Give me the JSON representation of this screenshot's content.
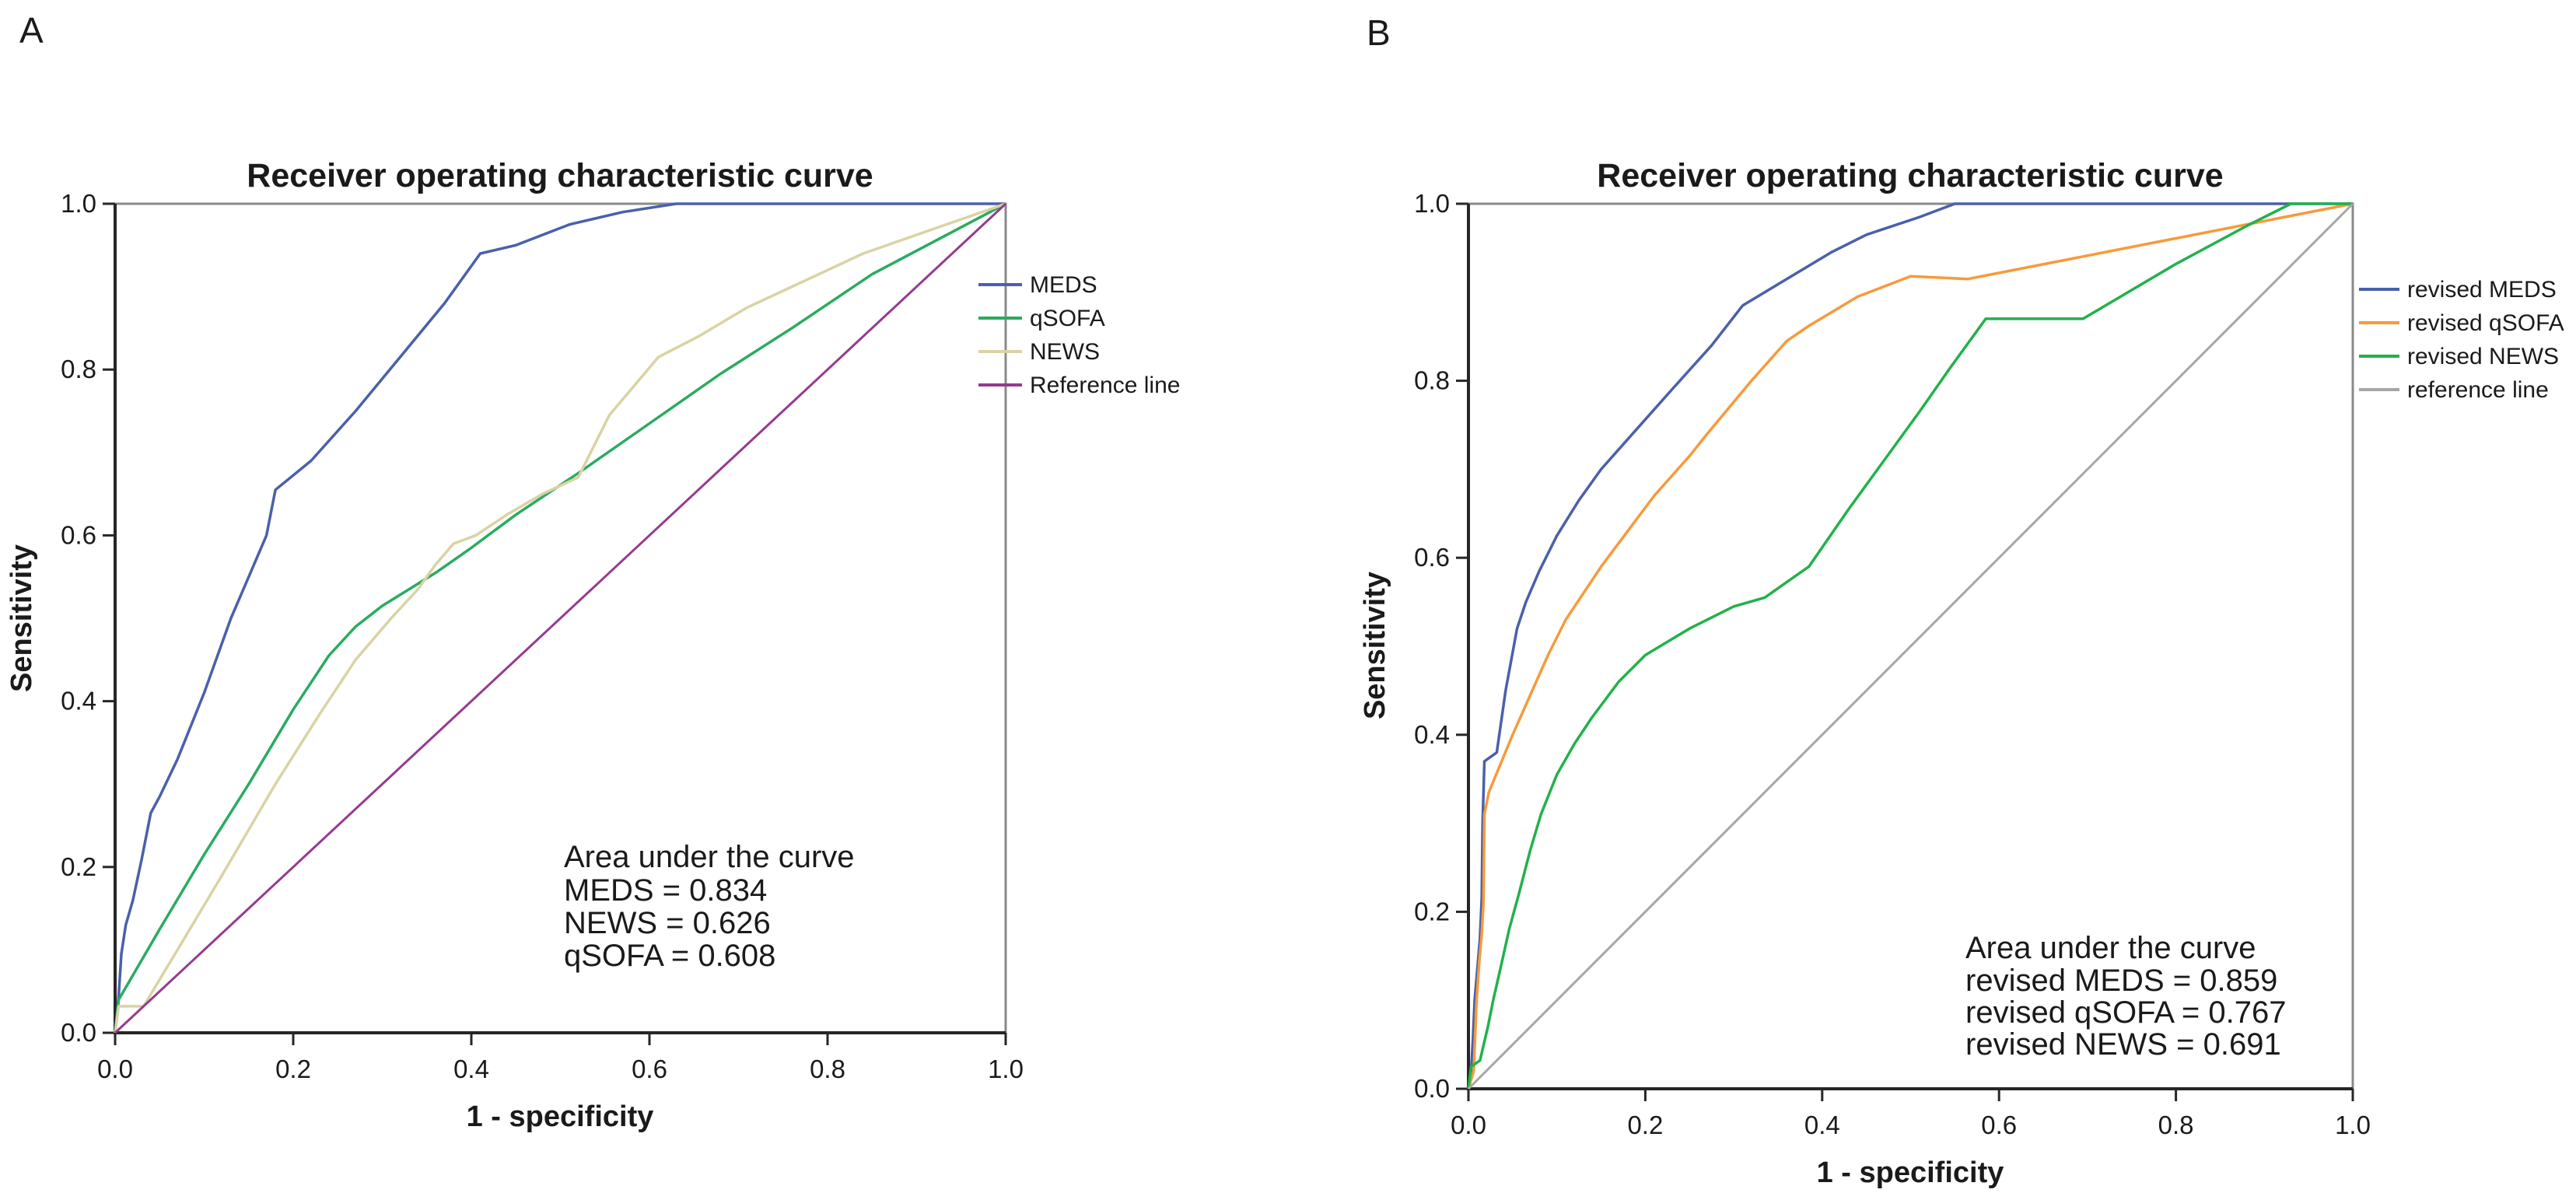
{
  "figure": {
    "background": "#ffffff",
    "text_color": "#1a1a1a",
    "frame_color": "#8a8a8a",
    "axis_color": "#262626"
  },
  "chart_data": [
    {
      "panel_label": "A",
      "type": "line",
      "title": "Receiver operating characteristic curve",
      "xlabel": "1 - specificity",
      "ylabel": "Sensitivity",
      "xlim": [
        0,
        1
      ],
      "ylim": [
        0,
        1
      ],
      "grid": false,
      "legend_position": "right",
      "x_ticks": [
        "0.0",
        "0.2",
        "0.4",
        "0.6",
        "0.8",
        "1.0"
      ],
      "y_ticks": [
        "0.0",
        "0.2",
        "0.4",
        "0.6",
        "0.8",
        "1.0"
      ],
      "annotation": {
        "title": "Area under the curve",
        "lines": [
          "MEDS = 0.834",
          "NEWS = 0.626",
          "qSOFA = 0.608"
        ]
      },
      "series": [
        {
          "name": "MEDS",
          "color": "#4a60aa",
          "auc": 0.834,
          "points": [
            [
              0,
              0
            ],
            [
              0.004,
              0.045
            ],
            [
              0.007,
              0.095
            ],
            [
              0.012,
              0.13
            ],
            [
              0.02,
              0.16
            ],
            [
              0.03,
              0.21
            ],
            [
              0.04,
              0.265
            ],
            [
              0.05,
              0.285
            ],
            [
              0.07,
              0.33
            ],
            [
              0.1,
              0.41
            ],
            [
              0.13,
              0.5
            ],
            [
              0.15,
              0.55
            ],
            [
              0.17,
              0.6
            ],
            [
              0.18,
              0.655
            ],
            [
              0.22,
              0.69
            ],
            [
              0.27,
              0.75
            ],
            [
              0.32,
              0.815
            ],
            [
              0.37,
              0.88
            ],
            [
              0.41,
              0.94
            ],
            [
              0.45,
              0.95
            ],
            [
              0.51,
              0.975
            ],
            [
              0.57,
              0.99
            ],
            [
              0.63,
              1
            ],
            [
              1,
              1
            ]
          ]
        },
        {
          "name": "qSOFA",
          "color": "#2aab60",
          "auc": 0.608,
          "points": [
            [
              0,
              0
            ],
            [
              0.004,
              0.04
            ],
            [
              0.05,
              0.125
            ],
            [
              0.1,
              0.215
            ],
            [
              0.15,
              0.3
            ],
            [
              0.2,
              0.39
            ],
            [
              0.24,
              0.455
            ],
            [
              0.27,
              0.49
            ],
            [
              0.3,
              0.515
            ],
            [
              0.33,
              0.535
            ],
            [
              0.36,
              0.555
            ],
            [
              0.4,
              0.585
            ],
            [
              0.45,
              0.625
            ],
            [
              0.52,
              0.675
            ],
            [
              0.6,
              0.735
            ],
            [
              0.68,
              0.795
            ],
            [
              0.76,
              0.85
            ],
            [
              0.85,
              0.915
            ],
            [
              1,
              1
            ]
          ]
        },
        {
          "name": "NEWS",
          "color": "#d9d3a4",
          "auc": 0.626,
          "points": [
            [
              0,
              0
            ],
            [
              0.004,
              0.032
            ],
            [
              0.032,
              0.032
            ],
            [
              0.07,
              0.1
            ],
            [
              0.12,
              0.19
            ],
            [
              0.18,
              0.3
            ],
            [
              0.23,
              0.385
            ],
            [
              0.27,
              0.45
            ],
            [
              0.31,
              0.5
            ],
            [
              0.34,
              0.535
            ],
            [
              0.36,
              0.565
            ],
            [
              0.38,
              0.59
            ],
            [
              0.405,
              0.6
            ],
            [
              0.44,
              0.625
            ],
            [
              0.48,
              0.65
            ],
            [
              0.52,
              0.67
            ],
            [
              0.555,
              0.745
            ],
            [
              0.61,
              0.815
            ],
            [
              0.655,
              0.84
            ],
            [
              0.71,
              0.875
            ],
            [
              0.77,
              0.905
            ],
            [
              0.84,
              0.94
            ],
            [
              0.92,
              0.97
            ],
            [
              1,
              1
            ]
          ]
        },
        {
          "name": "Reference line",
          "color": "#963a8e",
          "points": [
            [
              0,
              0
            ],
            [
              1,
              1
            ]
          ]
        }
      ]
    },
    {
      "panel_label": "B",
      "type": "line",
      "title": "Receiver operating characteristic curve",
      "xlabel": "1 - specificity",
      "ylabel": "Sensitivity",
      "xlim": [
        0,
        1
      ],
      "ylim": [
        0,
        1
      ],
      "grid": false,
      "legend_position": "right",
      "x_ticks": [
        "0.0",
        "0.2",
        "0.4",
        "0.6",
        "0.8",
        "1.0"
      ],
      "y_ticks": [
        "0.0",
        "0.2",
        "0.4",
        "0.6",
        "0.8",
        "1.0"
      ],
      "annotation": {
        "title": "Area under the curve",
        "lines": [
          "revised MEDS = 0.859",
          "revised qSOFA = 0.767",
          "revised NEWS = 0.691"
        ]
      },
      "series": [
        {
          "name": "revised MEDS",
          "color": "#4a60aa",
          "auc": 0.859,
          "points": [
            [
              0,
              0
            ],
            [
              0.003,
              0.02
            ],
            [
              0.005,
              0.055
            ],
            [
              0.007,
              0.1
            ],
            [
              0.01,
              0.135
            ],
            [
              0.013,
              0.17
            ],
            [
              0.015,
              0.215
            ],
            [
              0.016,
              0.3
            ],
            [
              0.018,
              0.37
            ],
            [
              0.032,
              0.38
            ],
            [
              0.042,
              0.45
            ],
            [
              0.055,
              0.52
            ],
            [
              0.065,
              0.55
            ],
            [
              0.08,
              0.585
            ],
            [
              0.1,
              0.625
            ],
            [
              0.125,
              0.665
            ],
            [
              0.15,
              0.7
            ],
            [
              0.19,
              0.745
            ],
            [
              0.23,
              0.79
            ],
            [
              0.275,
              0.84
            ],
            [
              0.31,
              0.885
            ],
            [
              0.36,
              0.915
            ],
            [
              0.41,
              0.945
            ],
            [
              0.45,
              0.965
            ],
            [
              0.51,
              0.985
            ],
            [
              0.55,
              1
            ],
            [
              1,
              1
            ]
          ]
        },
        {
          "name": "revised qSOFA",
          "color": "#f79a3b",
          "auc": 0.767,
          "points": [
            [
              0,
              0
            ],
            [
              0.006,
              0.02
            ],
            [
              0.009,
              0.095
            ],
            [
              0.012,
              0.14
            ],
            [
              0.015,
              0.175
            ],
            [
              0.017,
              0.21
            ],
            [
              0.018,
              0.31
            ],
            [
              0.023,
              0.335
            ],
            [
              0.05,
              0.4
            ],
            [
              0.09,
              0.49
            ],
            [
              0.11,
              0.53
            ],
            [
              0.15,
              0.59
            ],
            [
              0.165,
              0.61
            ],
            [
              0.21,
              0.67
            ],
            [
              0.25,
              0.715
            ],
            [
              0.27,
              0.74
            ],
            [
              0.32,
              0.8
            ],
            [
              0.36,
              0.845
            ],
            [
              0.385,
              0.862
            ],
            [
              0.44,
              0.895
            ],
            [
              0.5,
              0.918
            ],
            [
              0.565,
              0.915
            ],
            [
              1,
              1
            ]
          ]
        },
        {
          "name": "revised NEWS",
          "color": "#22b14c",
          "auc": 0.691,
          "points": [
            [
              0,
              0
            ],
            [
              0.003,
              0.025
            ],
            [
              0.013,
              0.032
            ],
            [
              0.022,
              0.07
            ],
            [
              0.028,
              0.1
            ],
            [
              0.036,
              0.135
            ],
            [
              0.046,
              0.18
            ],
            [
              0.057,
              0.22
            ],
            [
              0.07,
              0.27
            ],
            [
              0.082,
              0.31
            ],
            [
              0.1,
              0.355
            ],
            [
              0.12,
              0.39
            ],
            [
              0.14,
              0.42
            ],
            [
              0.17,
              0.46
            ],
            [
              0.2,
              0.49
            ],
            [
              0.25,
              0.52
            ],
            [
              0.3,
              0.545
            ],
            [
              0.335,
              0.555
            ],
            [
              0.385,
              0.59
            ],
            [
              0.43,
              0.655
            ],
            [
              0.47,
              0.71
            ],
            [
              0.51,
              0.765
            ],
            [
              0.545,
              0.815
            ],
            [
              0.585,
              0.87
            ],
            [
              0.695,
              0.87
            ],
            [
              0.8,
              0.932
            ],
            [
              0.88,
              0.975
            ],
            [
              0.93,
              1
            ],
            [
              1,
              1
            ]
          ]
        },
        {
          "name": "reference line",
          "color": "#a6a6a6",
          "points": [
            [
              0,
              0
            ],
            [
              1,
              1
            ]
          ]
        }
      ]
    }
  ]
}
